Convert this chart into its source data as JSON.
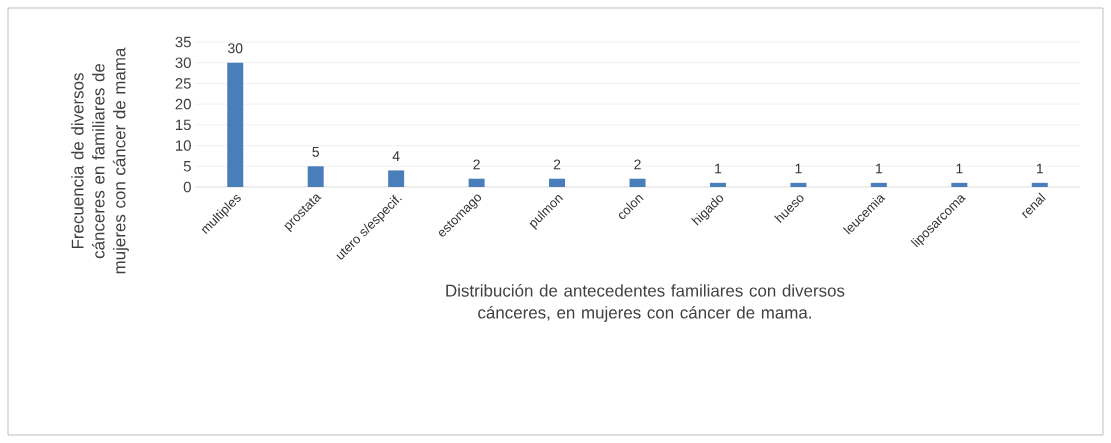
{
  "chart_data": {
    "type": "bar",
    "xlabel": "Distribución de antecedentes familiares con diversos cánceres, en mujeres con cáncer de mama.",
    "ylabel": "Frecuencia de diversos cánceres en familiares de mujeres con cáncer de mama",
    "categories": [
      "multiples",
      "prostata",
      "utero s/especif.",
      "estomago",
      "pulmon",
      "colon",
      "higado",
      "hueso",
      "leucemia",
      "liposarcoma",
      "renal"
    ],
    "values": [
      30,
      5,
      4,
      2,
      2,
      2,
      1,
      1,
      1,
      1,
      1
    ],
    "color": "#4a7ebb",
    "ylim": [
      0,
      35
    ],
    "yticks": [
      0,
      5,
      10,
      15,
      20,
      25,
      30,
      35
    ],
    "grid": "y",
    "data_labels": true
  }
}
